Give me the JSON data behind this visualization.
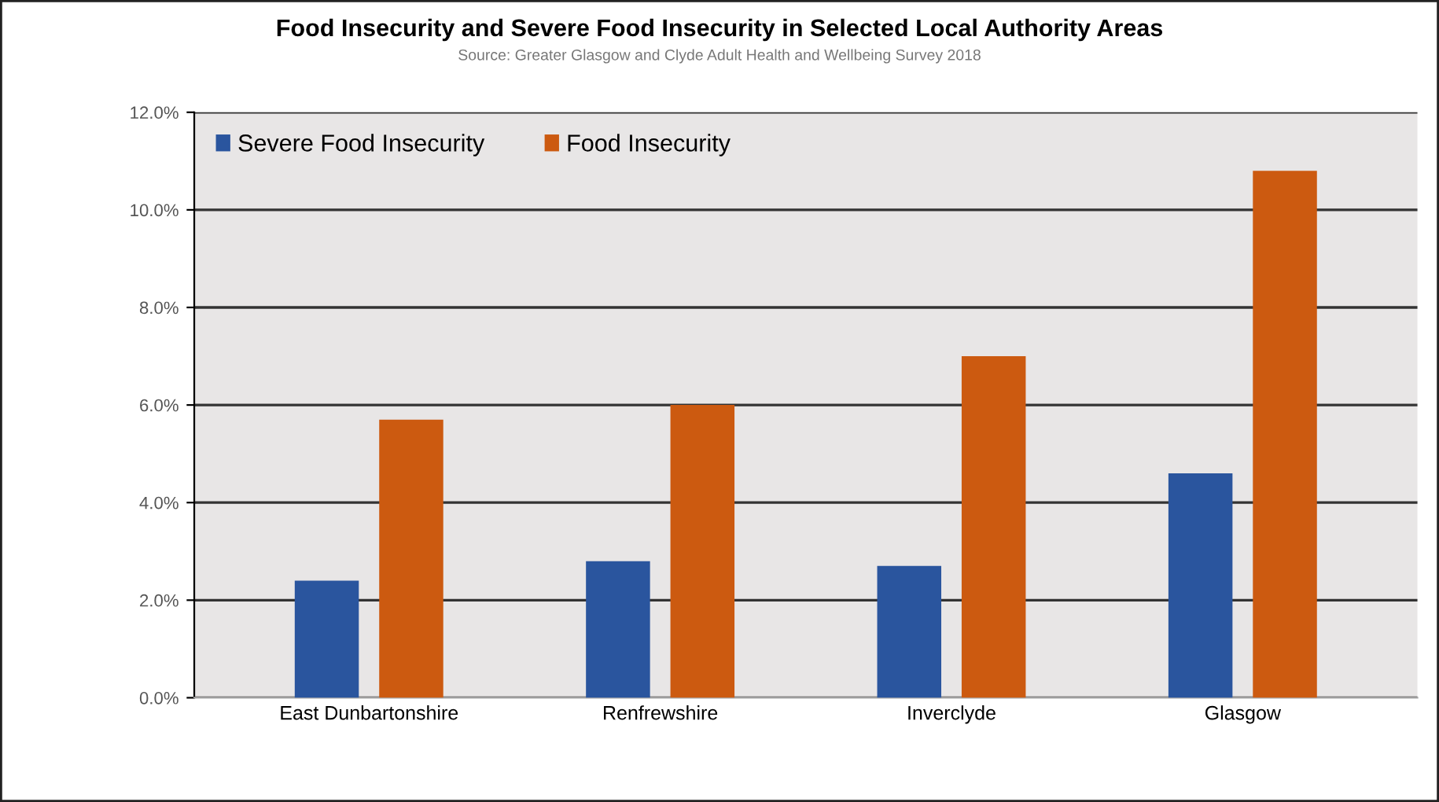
{
  "chart_data": {
    "type": "bar",
    "title": "Food Insecurity and Severe Food Insecurity in Selected Local Authority Areas",
    "annotations": [
      "Source: Greater Glasgow and Clyde Adult Health and Wellbeing Survey 2018"
    ],
    "categories": [
      "East Dunbartonshire",
      "Renfrewshire",
      "Inverclyde",
      "Glasgow"
    ],
    "series": [
      {
        "name": "Severe Food Insecurity",
        "color": "#2a559e",
        "values": [
          2.4,
          2.8,
          2.7,
          4.6
        ]
      },
      {
        "name": "Food Insecurity",
        "color": "#cc5a10",
        "values": [
          5.7,
          6.0,
          7.0,
          10.8
        ]
      }
    ],
    "ylim": [
      0,
      12
    ],
    "yticks": [
      {
        "value": 0,
        "label": "0.0%"
      },
      {
        "value": 2,
        "label": "2.0%"
      },
      {
        "value": 4,
        "label": "4.0%"
      },
      {
        "value": 6,
        "label": "6.0%"
      },
      {
        "value": 8,
        "label": "8.0%"
      },
      {
        "value": 10,
        "label": "10.0%"
      },
      {
        "value": 12,
        "label": "12.0%"
      }
    ],
    "grid": "y",
    "legend": "top left"
  }
}
